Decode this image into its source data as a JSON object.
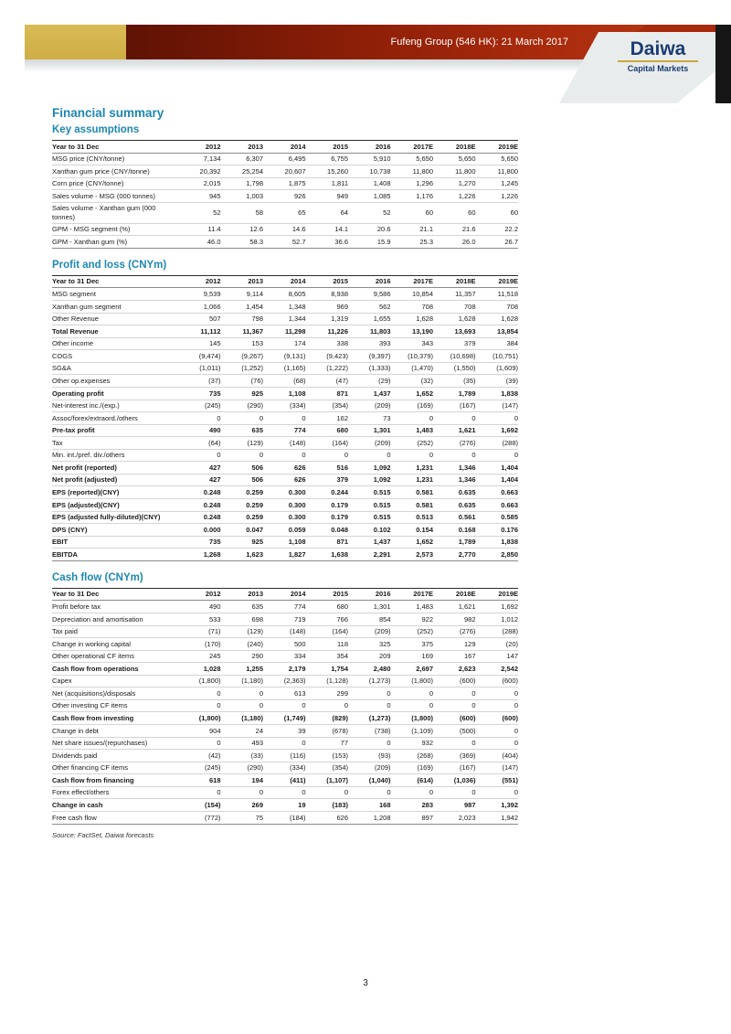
{
  "header": {
    "title": "Fufeng Group (546 HK): 21 March 2017",
    "logo_name": "Daiwa",
    "logo_sub": "Capital Markets",
    "colors": {
      "gold": "#cfae45",
      "red_banner": "#a82a0c",
      "navy_logo": "#1b3c74",
      "panel_gray": "#e9ecec"
    }
  },
  "page": {
    "section_title": "Financial summary",
    "accent_color": "#1e87b2",
    "source_note": "Source: FactSet, Daiwa forecasts",
    "page_number": "3"
  },
  "columns": [
    "Year to 31 Dec",
    "2012",
    "2013",
    "2014",
    "2015",
    "2016",
    "2017E",
    "2018E",
    "2019E"
  ],
  "tables": [
    {
      "title": "Key assumptions",
      "rows": [
        {
          "label": "MSG price (CNY/tonne)",
          "bold": false,
          "values": [
            "7,134",
            "6,307",
            "6,495",
            "6,755",
            "5,910",
            "5,650",
            "5,650",
            "5,650"
          ]
        },
        {
          "label": "Xanthan gum price (CNY/tonne)",
          "bold": false,
          "values": [
            "20,392",
            "25,254",
            "20,607",
            "15,260",
            "10,738",
            "11,800",
            "11,800",
            "11,800"
          ]
        },
        {
          "label": "Corn price (CNY/tonne)",
          "bold": false,
          "values": [
            "2,015",
            "1,798",
            "1,875",
            "1,811",
            "1,408",
            "1,296",
            "1,270",
            "1,245"
          ]
        },
        {
          "label": "Sales volume - MSG (000 tonnes)",
          "bold": false,
          "values": [
            "945",
            "1,003",
            "926",
            "949",
            "1,085",
            "1,176",
            "1,226",
            "1,226"
          ]
        },
        {
          "label": "Sales volume - Xanthan gum (000 tonnes)",
          "bold": false,
          "values": [
            "52",
            "58",
            "65",
            "64",
            "52",
            "60",
            "60",
            "60"
          ]
        },
        {
          "label": "GPM - MSG segment (%)",
          "bold": false,
          "values": [
            "11.4",
            "12.6",
            "14.6",
            "14.1",
            "20.6",
            "21.1",
            "21.6",
            "22.2"
          ]
        },
        {
          "label": "GPM - Xanthan gum (%)",
          "bold": false,
          "values": [
            "46.0",
            "58.3",
            "52.7",
            "36.6",
            "15.9",
            "25.3",
            "26.0",
            "26.7"
          ]
        }
      ]
    },
    {
      "title": "Profit and loss (CNYm)",
      "rows": [
        {
          "label": "MSG segment",
          "bold": false,
          "values": [
            "9,539",
            "9,114",
            "8,605",
            "8,938",
            "9,586",
            "10,854",
            "11,357",
            "11,518"
          ]
        },
        {
          "label": "Xanthan gum segment",
          "bold": false,
          "values": [
            "1,066",
            "1,454",
            "1,348",
            "969",
            "562",
            "708",
            "708",
            "708"
          ]
        },
        {
          "label": "Other Revenue",
          "bold": false,
          "values": [
            "507",
            "798",
            "1,344",
            "1,319",
            "1,655",
            "1,628",
            "1,628",
            "1,628"
          ]
        },
        {
          "label": "Total Revenue",
          "bold": true,
          "values": [
            "11,112",
            "11,367",
            "11,298",
            "11,226",
            "11,803",
            "13,190",
            "13,693",
            "13,854"
          ]
        },
        {
          "label": "Other income",
          "bold": false,
          "values": [
            "145",
            "153",
            "174",
            "338",
            "393",
            "343",
            "379",
            "384"
          ]
        },
        {
          "label": "COGS",
          "bold": false,
          "values": [
            "(9,474)",
            "(9,267)",
            "(9,131)",
            "(9,423)",
            "(9,397)",
            "(10,379)",
            "(10,698)",
            "(10,751)"
          ]
        },
        {
          "label": "SG&A",
          "bold": false,
          "values": [
            "(1,011)",
            "(1,252)",
            "(1,165)",
            "(1,222)",
            "(1,333)",
            "(1,470)",
            "(1,550)",
            "(1,609)"
          ]
        },
        {
          "label": "Other op.expenses",
          "bold": false,
          "values": [
            "(37)",
            "(76)",
            "(68)",
            "(47)",
            "(29)",
            "(32)",
            "(35)",
            "(39)"
          ]
        },
        {
          "label": "Operating profit",
          "bold": true,
          "values": [
            "735",
            "925",
            "1,108",
            "871",
            "1,437",
            "1,652",
            "1,789",
            "1,838"
          ]
        },
        {
          "label": "Net-interest inc./(exp.)",
          "bold": false,
          "values": [
            "(245)",
            "(290)",
            "(334)",
            "(354)",
            "(209)",
            "(169)",
            "(167)",
            "(147)"
          ]
        },
        {
          "label": "Assoc/forex/extraord./others",
          "bold": false,
          "values": [
            "0",
            "0",
            "0",
            "162",
            "73",
            "0",
            "0",
            "0"
          ]
        },
        {
          "label": "Pre-tax profit",
          "bold": true,
          "values": [
            "490",
            "635",
            "774",
            "680",
            "1,301",
            "1,483",
            "1,621",
            "1,692"
          ]
        },
        {
          "label": "Tax",
          "bold": false,
          "values": [
            "(64)",
            "(129)",
            "(148)",
            "(164)",
            "(209)",
            "(252)",
            "(276)",
            "(288)"
          ]
        },
        {
          "label": "Min. int./pref. div./others",
          "bold": false,
          "values": [
            "0",
            "0",
            "0",
            "0",
            "0",
            "0",
            "0",
            "0"
          ]
        },
        {
          "label": "Net profit (reported)",
          "bold": true,
          "values": [
            "427",
            "506",
            "626",
            "516",
            "1,092",
            "1,231",
            "1,346",
            "1,404"
          ]
        },
        {
          "label": "Net profit (adjusted)",
          "bold": true,
          "values": [
            "427",
            "506",
            "626",
            "379",
            "1,092",
            "1,231",
            "1,346",
            "1,404"
          ]
        },
        {
          "label": "EPS (reported)(CNY)",
          "bold": true,
          "values": [
            "0.248",
            "0.259",
            "0.300",
            "0.244",
            "0.515",
            "0.581",
            "0.635",
            "0.663"
          ]
        },
        {
          "label": "EPS (adjusted)(CNY)",
          "bold": true,
          "values": [
            "0.248",
            "0.259",
            "0.300",
            "0.179",
            "0.515",
            "0.581",
            "0.635",
            "0.663"
          ]
        },
        {
          "label": "EPS (adjusted fully-diluted)(CNY)",
          "bold": true,
          "values": [
            "0.248",
            "0.259",
            "0.300",
            "0.179",
            "0.515",
            "0.513",
            "0.561",
            "0.585"
          ]
        },
        {
          "label": "DPS (CNY)",
          "bold": true,
          "values": [
            "0.000",
            "0.047",
            "0.059",
            "0.048",
            "0.102",
            "0.154",
            "0.168",
            "0.176"
          ]
        },
        {
          "label": "EBIT",
          "bold": true,
          "values": [
            "735",
            "925",
            "1,108",
            "871",
            "1,437",
            "1,652",
            "1,789",
            "1,838"
          ]
        },
        {
          "label": "EBITDA",
          "bold": true,
          "values": [
            "1,268",
            "1,623",
            "1,827",
            "1,638",
            "2,291",
            "2,573",
            "2,770",
            "2,850"
          ]
        }
      ]
    },
    {
      "title": "Cash flow (CNYm)",
      "rows": [
        {
          "label": "Profit before tax",
          "bold": false,
          "values": [
            "490",
            "635",
            "774",
            "680",
            "1,301",
            "1,483",
            "1,621",
            "1,692"
          ]
        },
        {
          "label": "Depreciation and amortisation",
          "bold": false,
          "values": [
            "533",
            "698",
            "719",
            "766",
            "854",
            "922",
            "982",
            "1,012"
          ]
        },
        {
          "label": "Tax paid",
          "bold": false,
          "values": [
            "(71)",
            "(129)",
            "(148)",
            "(164)",
            "(209)",
            "(252)",
            "(276)",
            "(288)"
          ]
        },
        {
          "label": "Change in working capital",
          "bold": false,
          "values": [
            "(170)",
            "(240)",
            "500",
            "118",
            "325",
            "375",
            "129",
            "(20)"
          ]
        },
        {
          "label": "Other operational CF items",
          "bold": false,
          "values": [
            "245",
            "290",
            "334",
            "354",
            "209",
            "169",
            "167",
            "147"
          ]
        },
        {
          "label": "Cash flow from operations",
          "bold": true,
          "values": [
            "1,028",
            "1,255",
            "2,179",
            "1,754",
            "2,480",
            "2,697",
            "2,623",
            "2,542"
          ]
        },
        {
          "label": "Capex",
          "bold": false,
          "values": [
            "(1,800)",
            "(1,180)",
            "(2,363)",
            "(1,128)",
            "(1,273)",
            "(1,800)",
            "(600)",
            "(600)"
          ]
        },
        {
          "label": "Net (acquisitions)/disposals",
          "bold": false,
          "values": [
            "0",
            "0",
            "613",
            "299",
            "0",
            "0",
            "0",
            "0"
          ]
        },
        {
          "label": "Other investing CF items",
          "bold": false,
          "values": [
            "0",
            "0",
            "0",
            "0",
            "0",
            "0",
            "0",
            "0"
          ]
        },
        {
          "label": "Cash flow from investing",
          "bold": true,
          "values": [
            "(1,800)",
            "(1,180)",
            "(1,749)",
            "(829)",
            "(1,273)",
            "(1,800)",
            "(600)",
            "(600)"
          ]
        },
        {
          "label": "Change in debt",
          "bold": false,
          "values": [
            "904",
            "24",
            "39",
            "(678)",
            "(738)",
            "(1,109)",
            "(500)",
            "0"
          ]
        },
        {
          "label": "Net share issues/(repurchases)",
          "bold": false,
          "values": [
            "0",
            "493",
            "0",
            "77",
            "0",
            "932",
            "0",
            "0"
          ]
        },
        {
          "label": "Dividends paid",
          "bold": false,
          "values": [
            "(42)",
            "(33)",
            "(116)",
            "(153)",
            "(93)",
            "(268)",
            "(369)",
            "(404)"
          ]
        },
        {
          "label": "Other financing CF items",
          "bold": false,
          "values": [
            "(245)",
            "(290)",
            "(334)",
            "(354)",
            "(209)",
            "(169)",
            "(167)",
            "(147)"
          ]
        },
        {
          "label": "Cash flow from financing",
          "bold": true,
          "values": [
            "618",
            "194",
            "(411)",
            "(1,107)",
            "(1,040)",
            "(614)",
            "(1,036)",
            "(551)"
          ]
        },
        {
          "label": "Forex effect/others",
          "bold": false,
          "values": [
            "0",
            "0",
            "0",
            "0",
            "0",
            "0",
            "0",
            "0"
          ]
        },
        {
          "label": "Change in cash",
          "bold": true,
          "values": [
            "(154)",
            "269",
            "19",
            "(183)",
            "168",
            "283",
            "987",
            "1,392"
          ]
        },
        {
          "label": "Free cash flow",
          "bold": false,
          "values": [
            "(772)",
            "75",
            "(184)",
            "626",
            "1,208",
            "897",
            "2,023",
            "1,942"
          ]
        }
      ]
    }
  ]
}
